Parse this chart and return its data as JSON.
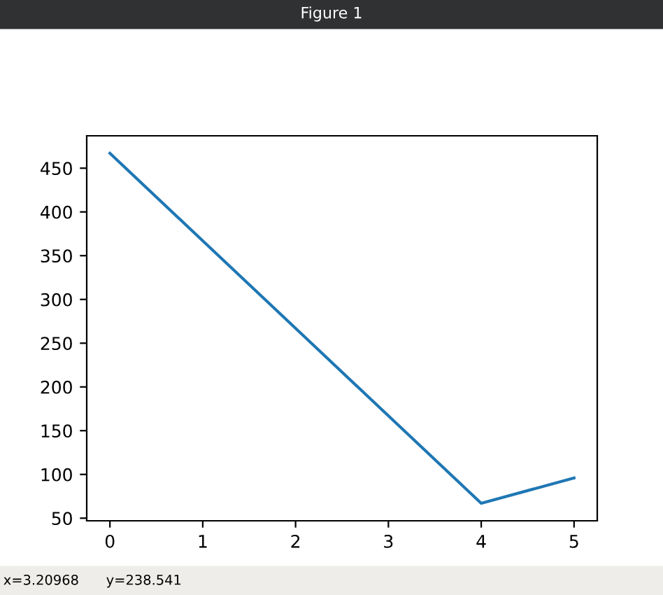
{
  "chart_data": {
    "type": "line",
    "title": "Figure 1",
    "x": [
      0,
      1,
      2,
      3,
      4,
      5
    ],
    "series": [
      {
        "color": "#1f77b4",
        "values": [
          467,
          367,
          267,
          167,
          67,
          96
        ]
      }
    ],
    "xlim": [
      -0.25,
      5.25
    ],
    "xticks": [
      0,
      1,
      2,
      3,
      4,
      5
    ],
    "ylim": [
      47,
      487
    ],
    "yticks": [
      50,
      100,
      150,
      200,
      250,
      300,
      350,
      400,
      450
    ],
    "grid": false,
    "legend": false,
    "marker": "none",
    "line_style": "solid",
    "annotations": [
      "x=3.20968",
      "y=238.541"
    ]
  }
}
